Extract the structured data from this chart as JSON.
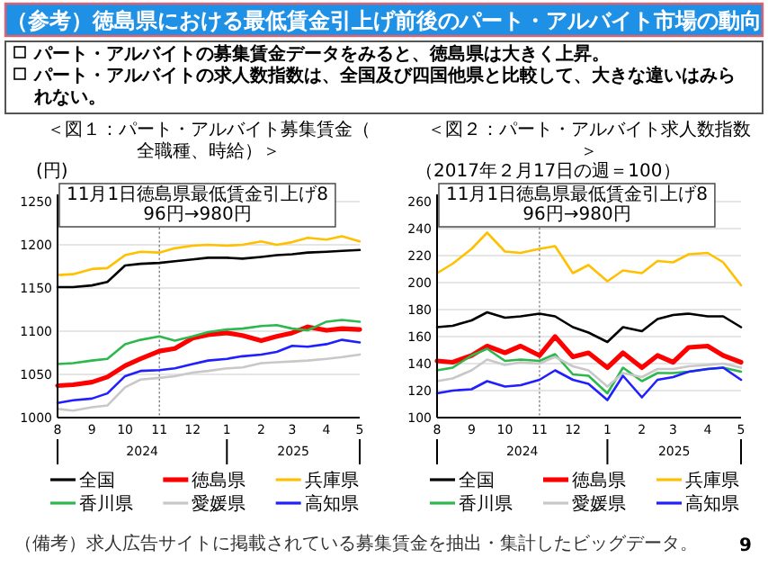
{
  "chart_data": [
    {
      "type": "other",
      "title": "（参考）徳島県における最低賃金引上げ前後のパート・アルバイト市場の動向",
      "annotations": [
        "パート・アルバイトの募集賃金データをみると、徳島県は大きく上昇。",
        "パート・アルバイトの求人数指数は、全国及び四国他県と比較して、大きな違いはみられない。",
        "（備考）求人広告サイトに掲載されている募集賃金を抽出・集計したビッグデータ。",
        "9"
      ]
    },
    {
      "type": "line",
      "title": "＜図１：パート・アルバイト募集賃金（全職種、時給）＞",
      "ylabel": "(円)",
      "x": [
        "2024-08-01",
        "2024-08-15",
        "2024-09-01",
        "2024-09-15",
        "2024-10-01",
        "2024-10-15",
        "2024-11-01",
        "2024-11-15",
        "2024-12-01",
        "2024-12-15",
        "2025-01-01",
        "2025-01-15",
        "2025-02-01",
        "2025-02-15",
        "2025-03-01",
        "2025-03-15",
        "2025-04-01",
        "2025-04-15",
        "2025-05-01"
      ],
      "series": [
        {
          "name": "全国",
          "color": "#000000",
          "values": [
            1151,
            1151,
            1153,
            1157,
            1176,
            1178,
            1179,
            1181,
            1183,
            1185,
            1185,
            1184,
            1186,
            1188,
            1189,
            1191,
            1192,
            1193,
            1194
          ]
        },
        {
          "name": "徳島県",
          "color": "#ff0000",
          "values": [
            1037,
            1038,
            1041,
            1047,
            1060,
            1068,
            1077,
            1080,
            1092,
            1096,
            1098,
            1095,
            1089,
            1094,
            1098,
            1105,
            1101,
            1103,
            1102
          ]
        },
        {
          "name": "兵庫県",
          "color": "#ffc000",
          "values": [
            1165,
            1166,
            1172,
            1173,
            1188,
            1192,
            1191,
            1196,
            1199,
            1200,
            1199,
            1200,
            1204,
            1200,
            1203,
            1208,
            1206,
            1210,
            1204
          ]
        },
        {
          "name": "香川県",
          "color": "#2db84d",
          "values": [
            1062,
            1063,
            1066,
            1068,
            1085,
            1090,
            1094,
            1089,
            1094,
            1099,
            1102,
            1103,
            1106,
            1107,
            1103,
            1101,
            1111,
            1113,
            1111
          ]
        },
        {
          "name": "愛媛県",
          "color": "#c8c8c8",
          "values": [
            1010,
            1008,
            1012,
            1014,
            1035,
            1044,
            1046,
            1048,
            1052,
            1054,
            1057,
            1058,
            1063,
            1064,
            1065,
            1066,
            1068,
            1070,
            1073
          ]
        },
        {
          "name": "高知県",
          "color": "#1f1fff",
          "values": [
            1017,
            1020,
            1022,
            1028,
            1048,
            1054,
            1055,
            1057,
            1062,
            1066,
            1068,
            1071,
            1073,
            1076,
            1083,
            1082,
            1085,
            1090,
            1087
          ]
        }
      ],
      "xlim": [
        "2024-08-01",
        "2025-05-01"
      ],
      "xticks": [
        {
          "value": "2024-08-01",
          "label": "8"
        },
        {
          "value": "2024-09-01",
          "label": "9"
        },
        {
          "value": "2024-10-01",
          "label": "10"
        },
        {
          "value": "2024-11-01",
          "label": "11"
        },
        {
          "value": "2024-12-01",
          "label": "12"
        },
        {
          "value": "2025-01-01",
          "label": "1"
        },
        {
          "value": "2025-02-01",
          "label": "2"
        },
        {
          "value": "2025-03-01",
          "label": "3"
        },
        {
          "value": "2025-04-01",
          "label": "4"
        },
        {
          "value": "2025-05-01",
          "label": "5"
        }
      ],
      "ylim": [
        1000,
        1250
      ],
      "yticks": [
        1000,
        1050,
        1100,
        1150,
        1200,
        1250
      ],
      "grid": "y",
      "legend": "bottom",
      "ref_lines": [
        {
          "axis": "x",
          "value": "2024-11-01",
          "label": "11月1日徳島県最低賃金引上げ896円→980円",
          "line_style": "dotted",
          "color": "#808080"
        }
      ],
      "annotations": [
        "2024",
        "2025"
      ]
    },
    {
      "type": "line",
      "title": "＜図２：パート・アルバイト求人数指数＞",
      "ylabel": "（2017年２月17日の週＝100）",
      "x": [
        "2024-08-01",
        "2024-08-15",
        "2024-09-01",
        "2024-09-15",
        "2024-10-01",
        "2024-10-15",
        "2024-11-01",
        "2024-11-15",
        "2024-12-01",
        "2024-12-15",
        "2025-01-01",
        "2025-01-15",
        "2025-02-01",
        "2025-02-15",
        "2025-03-01",
        "2025-03-15",
        "2025-04-01",
        "2025-04-15",
        "2025-05-01"
      ],
      "series": [
        {
          "name": "全国",
          "color": "#000000",
          "values": [
            167,
            168,
            172,
            178,
            174,
            175,
            177,
            175,
            167,
            163,
            156,
            167,
            164,
            173,
            176,
            177,
            175,
            175,
            167
          ]
        },
        {
          "name": "徳島県",
          "color": "#ff0000",
          "values": [
            142,
            141,
            146,
            153,
            148,
            153,
            146,
            160,
            145,
            148,
            137,
            148,
            137,
            146,
            141,
            152,
            153,
            146,
            141
          ]
        },
        {
          "name": "兵庫県",
          "color": "#ffc000",
          "values": [
            207,
            214,
            225,
            237,
            223,
            222,
            225,
            227,
            207,
            213,
            201,
            209,
            207,
            216,
            215,
            221,
            222,
            215,
            198
          ]
        },
        {
          "name": "香川県",
          "color": "#2db84d",
          "values": [
            135,
            137,
            146,
            151,
            142,
            143,
            142,
            147,
            132,
            131,
            118,
            137,
            127,
            133,
            133,
            134,
            136,
            137,
            134
          ]
        },
        {
          "name": "愛媛県",
          "color": "#c8c8c8",
          "values": [
            127,
            129,
            135,
            143,
            139,
            141,
            140,
            145,
            138,
            135,
            123,
            133,
            130,
            136,
            136,
            138,
            139,
            140,
            137
          ]
        },
        {
          "name": "高知県",
          "color": "#1f1fff",
          "values": [
            118,
            120,
            121,
            127,
            123,
            124,
            128,
            135,
            128,
            125,
            113,
            131,
            115,
            128,
            130,
            134,
            136,
            137,
            128
          ]
        }
      ],
      "xlim": [
        "2024-08-01",
        "2025-05-01"
      ],
      "xticks": [
        {
          "value": "2024-08-01",
          "label": "8"
        },
        {
          "value": "2024-09-01",
          "label": "9"
        },
        {
          "value": "2024-10-01",
          "label": "10"
        },
        {
          "value": "2024-11-01",
          "label": "11"
        },
        {
          "value": "2024-12-01",
          "label": "12"
        },
        {
          "value": "2025-01-01",
          "label": "1"
        },
        {
          "value": "2025-02-01",
          "label": "2"
        },
        {
          "value": "2025-03-01",
          "label": "3"
        },
        {
          "value": "2025-04-01",
          "label": "4"
        },
        {
          "value": "2025-05-01",
          "label": "5"
        }
      ],
      "ylim": [
        100,
        260
      ],
      "yticks": [
        100,
        120,
        140,
        160,
        180,
        200,
        220,
        240,
        260
      ],
      "grid": "y",
      "legend": "bottom",
      "ref_lines": [
        {
          "axis": "x",
          "value": "2024-11-01",
          "label": "11月1日徳島県最低賃金引上げ896円→980円",
          "line_style": "dotted",
          "color": "#808080"
        }
      ],
      "annotations": [
        "2024",
        "2025"
      ]
    }
  ]
}
